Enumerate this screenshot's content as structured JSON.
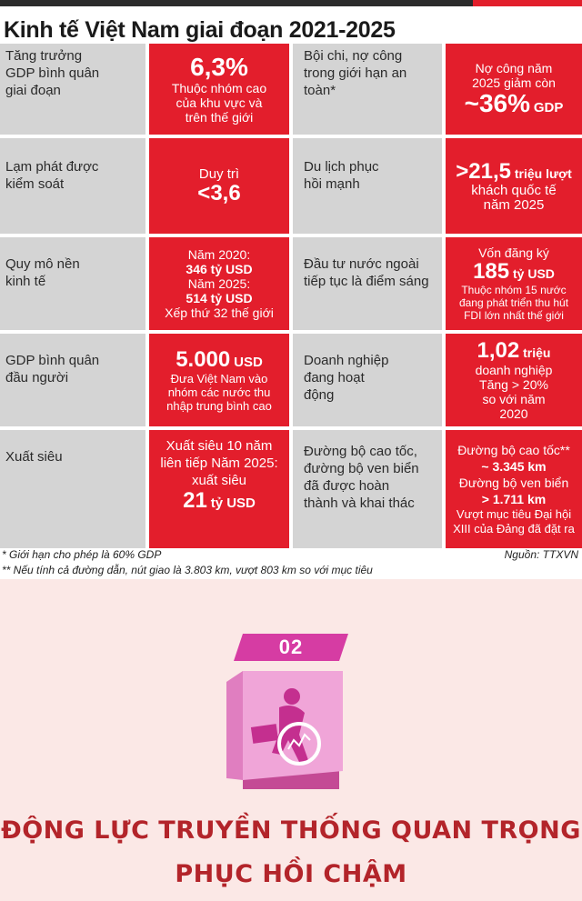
{
  "title": "Kinh tế Việt Nam giai đoạn 2021-2025",
  "cells": [
    {
      "label": "Tăng trưởng GDP bình quân giai đoạn",
      "big": "6,3%",
      "small": "Thuộc nhóm cao của khu vực và trên thế giới"
    },
    {
      "label": "Bội chi, nợ công trong giới hạn an toàn*",
      "top": "Nợ công năm 2025 giảm còn",
      "big": "~36%",
      "unit": "GDP"
    },
    {
      "label": "Lạm phát được kiểm soát",
      "top": "Duy trì",
      "big": "<3,6"
    },
    {
      "label": "Du lịch phục hồi mạnh",
      "big": ">21,5",
      "unit": "triệu lượt",
      "small": "khách quốc tế năm 2025"
    },
    {
      "label": "Quy mô nền kinh tế",
      "l1": "Năm 2020:",
      "l2": "346 tỷ USD",
      "l3": "Năm 2025:",
      "l4": "514 tỷ USD",
      "l5": "Xếp thứ 32 thế giới"
    },
    {
      "label": "Đầu tư nước ngoài tiếp tục là điểm sáng",
      "top": "Vốn đăng ký",
      "big": "185",
      "unit": "tỷ USD",
      "small": "Thuộc nhóm 15 nước đang phát triển thu hút FDI lớn nhất thế giới"
    },
    {
      "label": "GDP bình quân đầu người",
      "big": "5.000",
      "unit": "USD",
      "small": "Đưa Việt Nam vào nhóm các nước thu nhập trung bình cao"
    },
    {
      "label": "Doanh nghiệp đang hoạt động",
      "big": "1,02",
      "unit": "triệu",
      "small": "doanh nghiệp Tăng > 20% so với năm 2020"
    },
    {
      "label": "Xuất siêu",
      "top": "Xuất siêu 10 năm liên tiếp Năm 2025: xuất siêu",
      "big": "21",
      "unit": "tỷ USD"
    },
    {
      "label": "Đường bộ cao tốc, đường bộ ven biển đã được hoàn thành và khai thác",
      "l1": "Đường bộ cao tốc**",
      "l2": "~ 3.345 km",
      "l3": "Đường bộ ven biển",
      "l4": "> 1.711 km",
      "l5": "Vượt mục tiêu Đại hội XIII của Đảng đã đặt ra"
    }
  ],
  "notes": {
    "n1": "* Giới hạn cho phép là 60% GDP",
    "n2": "** Nếu tính cả đường dẫn, nút giao là 3.803 km, vượt 803 km so với mục tiêu",
    "source": "Nguồn: TTXVN"
  },
  "section": {
    "number": "02",
    "headline1": "ĐỘNG LỰC TRUYỀN THỐNG QUAN TRỌNG",
    "headline2": "PHỤC HỒI CHẬM",
    "icon": "person-chart-icon"
  },
  "colors": {
    "accent": "#e31e2c",
    "label_bg": "#d4d4d4",
    "headline": "#b3242a",
    "ribbon": "#d63ca3",
    "card": "#f0a0d4"
  }
}
